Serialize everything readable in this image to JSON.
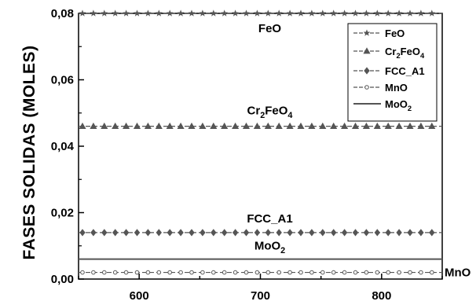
{
  "chart_data": {
    "type": "line",
    "ylabel": "FASES SOLIDAS (MOLES)",
    "xlabel": "",
    "xlim": [
      550,
      850
    ],
    "ylim": [
      0,
      0.08
    ],
    "x_ticks": [
      600,
      700,
      800
    ],
    "x_tick_labels": [
      "600",
      "700",
      "800"
    ],
    "y_ticks": [
      0,
      0.02,
      0.04,
      0.06,
      0.08
    ],
    "y_tick_labels": [
      "0,00",
      "0,02",
      "0,04",
      "0,06",
      "0,08"
    ],
    "grid": false,
    "legend_position": "top-right",
    "series": [
      {
        "name": "FeO",
        "name_main": "FeO",
        "name_sub": "",
        "name_tail": "",
        "marker": "star",
        "x": [
          550,
          850
        ],
        "y": [
          0.08,
          0.08
        ],
        "annotation_x": 700
      },
      {
        "name": "Cr2FeO4",
        "name_main": "Cr",
        "name_sub": "2",
        "name_tail": "FeO",
        "name_sub2": "4",
        "marker": "triangle",
        "x": [
          550,
          850
        ],
        "y": [
          0.046,
          0.046
        ],
        "annotation_x": 700
      },
      {
        "name": "FCC_A1",
        "name_main": "FCC_A1",
        "name_sub": "",
        "name_tail": "",
        "marker": "diamond",
        "x": [
          550,
          850
        ],
        "y": [
          0.014,
          0.014
        ],
        "annotation_x": 700
      },
      {
        "name": "MnO",
        "name_main": "MnO",
        "name_sub": "",
        "name_tail": "",
        "marker": "circle",
        "x": [
          550,
          850
        ],
        "y": [
          0.002,
          0.002
        ],
        "annotation_x": 850
      },
      {
        "name": "MoO2",
        "name_main": "MoO",
        "name_sub": "2",
        "name_tail": "",
        "marker": "none",
        "x": [
          550,
          850
        ],
        "y": [
          0.006,
          0.006
        ],
        "annotation_x": 700
      }
    ],
    "colors": {
      "line": "#555555",
      "marker": "#555555",
      "axis": "#000000"
    }
  }
}
